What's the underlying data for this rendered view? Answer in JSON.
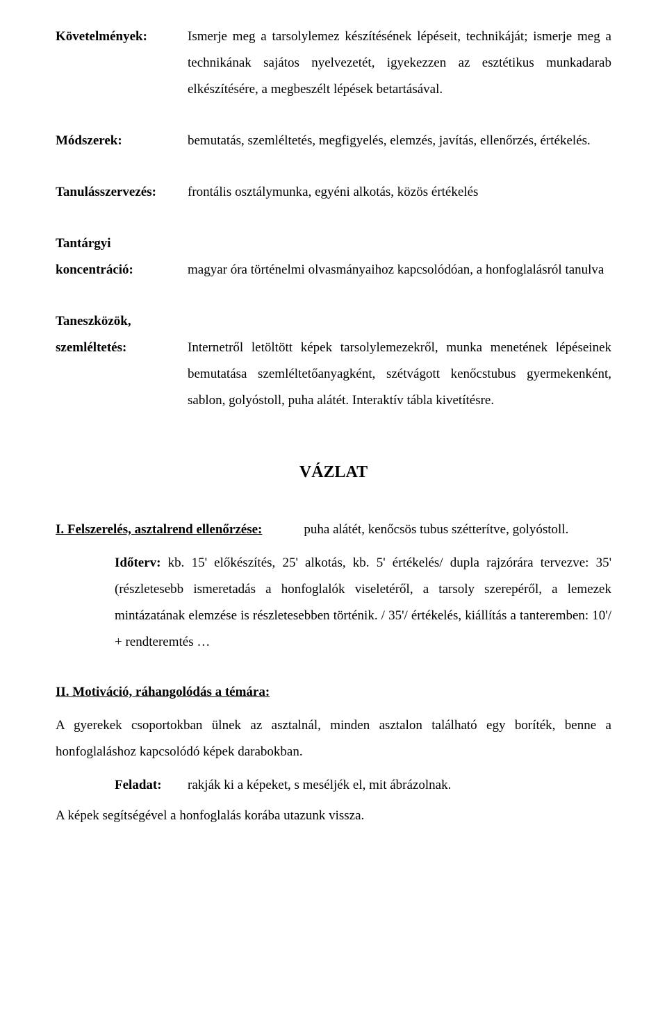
{
  "defs": {
    "kovetelmenyek": {
      "label": "Követelmények:",
      "text": "Ismerje meg a tarsolylemez készítésének lépéseit, technikáját; ismerje meg a technikának sajátos nyelvezetét, igyekezzen az esztétikus munkadarab elkészítésére, a megbeszélt lépések betartásával."
    },
    "modszerek": {
      "label": "Módszerek:",
      "text": "bemutatás, szemléltetés, megfigyelés, elemzés, javítás, ellenőrzés, értékelés."
    },
    "tanulasszervezes": {
      "label": "Tanulásszervezés:",
      "text": "frontális osztálymunka, egyéni alkotás, közös értékelés"
    },
    "tantargyi": {
      "label1": "Tantárgyi",
      "label2": "koncentráció:",
      "text": "magyar óra történelmi olvasmányaihoz kapcsolódóan, a honfoglalásról tanulva"
    },
    "taneszkozok": {
      "label1": "Taneszközök,",
      "label2": "szemléltetés:",
      "text": "Internetről letöltött képek tarsolylemezekről, munka menetének lépéseinek bemutatása szemléltetőanyagként, szétvágott kenőcstubus gyermekenként, sablon, golyóstoll, puha alátét. Interaktív tábla kivetítésre."
    }
  },
  "vazlat_title": "VÁZLAT",
  "section1": {
    "heading": "I. Felszerelés, asztalrend ellenőrzése:",
    "right": "puha alátét, kenőcsös tubus szétterítve, golyóstoll.",
    "idoterv_label": "Időterv:",
    "idoterv_text": "kb. 15' előkészítés, 25' alkotás, kb. 5' értékelés/ dupla rajzórára tervezve: 35' (részletesebb ismeretadás a honfoglalók viseletéről, a tarsoly szerepéről, a lemezek mintázatának elemzése is részletesebben történik. / 35'/ értékelés, kiállítás a tanteremben: 10'/ + rendteremtés …"
  },
  "section2": {
    "heading": "II. Motiváció, ráhangolódás a témára:",
    "para1": "A gyerekek csoportokban ülnek az asztalnál, minden asztalon található egy boríték, benne a honfoglaláshoz kapcsolódó képek darabokban.",
    "feladat_label": "Feladat:",
    "feladat_text": "rakják ki a képeket, s meséljék el, mit ábrázolnak.",
    "para2": "A képek segítségével a honfoglalás korába utazunk vissza."
  }
}
